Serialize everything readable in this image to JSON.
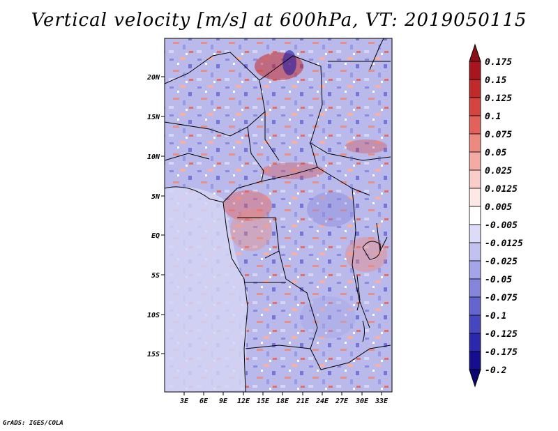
{
  "title": "Vertical velocity [m/s] at 600hPa, VT: 2019050115",
  "credit": "GrADS: IGES/COLA",
  "map": {
    "lon_range": [
      0,
      34.5
    ],
    "lat_range": [
      -20,
      25
    ],
    "lat_ticks": [
      "20N",
      "15N",
      "10N",
      "5N",
      "EQ",
      "5S",
      "10S",
      "15S"
    ],
    "lon_ticks": [
      "3E",
      "6E",
      "9E",
      "12E",
      "15E",
      "18E",
      "21E",
      "24E",
      "27E",
      "30E",
      "33E"
    ]
  },
  "colorbar": {
    "labels": [
      "0.175",
      "0.15",
      "0.125",
      "0.1",
      "0.075",
      "0.05",
      "0.025",
      "0.0125",
      "0.005",
      "-0.005",
      "-0.0125",
      "-0.025",
      "-0.05",
      "-0.075",
      "-0.1",
      "-0.125",
      "-0.175",
      "-0.2"
    ],
    "colors": [
      "#8b0f1a",
      "#a8151f",
      "#c22a2a",
      "#d64440",
      "#e2625a",
      "#ec8a80",
      "#f4aba3",
      "#f9cdc8",
      "#fde8e5",
      "#ffffff",
      "#dcdcf6",
      "#c2c2f0",
      "#a4a4e8",
      "#8585dc",
      "#6565cf",
      "#4646bf",
      "#2a28ac",
      "#150f90",
      "#0c0670"
    ]
  }
}
